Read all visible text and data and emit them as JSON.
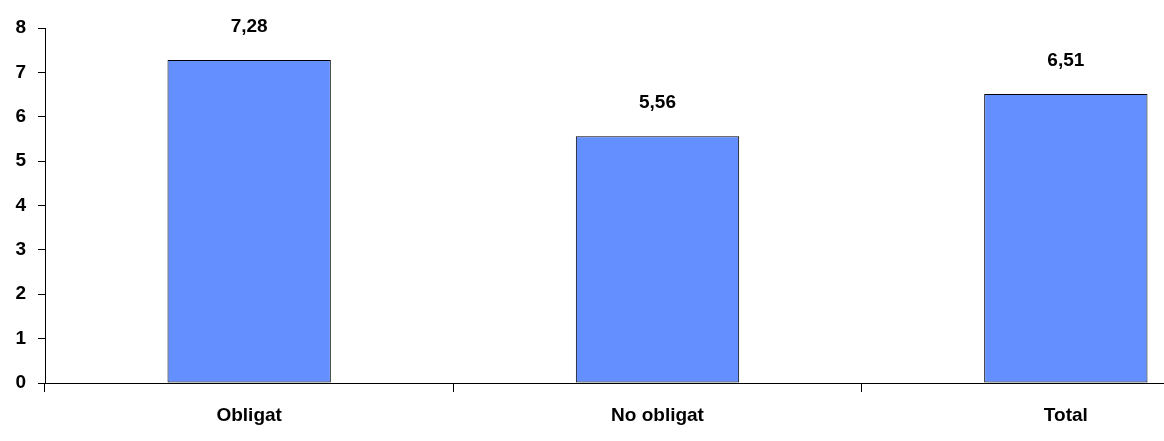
{
  "chart_data": {
    "type": "bar",
    "categories": [
      "Obligat",
      "No obligat",
      "Total"
    ],
    "values": [
      7.28,
      5.56,
      6.51
    ],
    "value_labels": [
      "7,28",
      "5,56",
      "6,51"
    ],
    "color": "#6490ff",
    "ylim": [
      0,
      8
    ],
    "yticks": [
      0,
      1,
      2,
      3,
      4,
      5,
      6,
      7,
      8
    ],
    "grid": false
  }
}
